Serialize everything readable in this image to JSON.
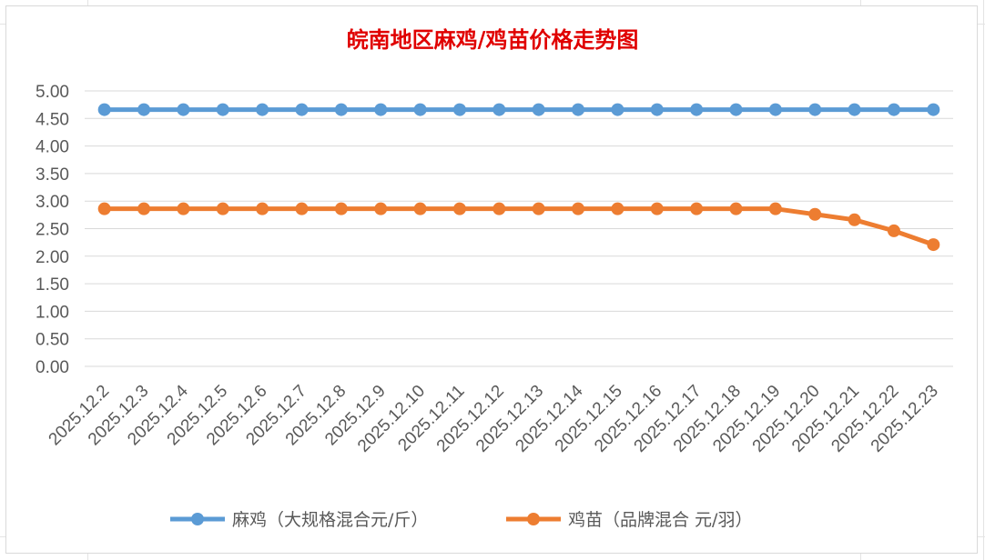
{
  "chart_data": {
    "type": "line",
    "title": "皖南地区麻鸡/鸡苗价格走势图",
    "categories": [
      "2025.12.2",
      "2025.12.3",
      "2025.12.4",
      "2025.12.5",
      "2025.12.6",
      "2025.12.7",
      "2025.12.8",
      "2025.12.9",
      "2025.12.10",
      "2025.12.11",
      "2025.12.12",
      "2025.12.13",
      "2025.12.14",
      "2025.12.15",
      "2025.12.16",
      "2025.12.17",
      "2025.12.18",
      "2025.12.19",
      "2025.12.20",
      "2025.12.21",
      "2025.12.22",
      "2025.12.23"
    ],
    "series": [
      {
        "name": "麻鸡（大规格混合元/斤）",
        "color": "#5b9bd5",
        "values": [
          4.66,
          4.66,
          4.66,
          4.66,
          4.66,
          4.66,
          4.66,
          4.66,
          4.66,
          4.66,
          4.66,
          4.66,
          4.66,
          4.66,
          4.66,
          4.66,
          4.66,
          4.66,
          4.66,
          4.66,
          4.66,
          4.66
        ]
      },
      {
        "name": "鸡苗（品牌混合 元/羽）",
        "color": "#ed7d31",
        "values": [
          2.86,
          2.86,
          2.86,
          2.86,
          2.86,
          2.86,
          2.86,
          2.86,
          2.86,
          2.86,
          2.86,
          2.86,
          2.86,
          2.86,
          2.86,
          2.86,
          2.86,
          2.86,
          2.76,
          2.66,
          2.46,
          2.21
        ]
      }
    ],
    "ylim": [
      0,
      5
    ],
    "yticks": [
      "0.00",
      "0.50",
      "1.00",
      "1.50",
      "2.00",
      "2.50",
      "3.00",
      "3.50",
      "4.00",
      "4.50",
      "5.00"
    ],
    "grid": true,
    "legend_position": "bottom"
  }
}
